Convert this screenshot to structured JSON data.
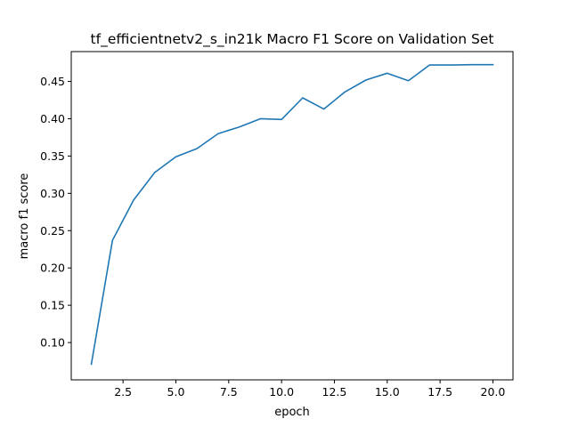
{
  "chart_data": {
    "type": "line",
    "title": "tf_efficientnetv2_s_in21k Macro F1 Score on Validation Set",
    "xlabel": "epoch",
    "ylabel": "macro f1 score",
    "xlim": [
      0.05,
      20.95
    ],
    "ylim": [
      0.05,
      0.49
    ],
    "xticks": [
      2.5,
      5.0,
      7.5,
      10.0,
      12.5,
      15.0,
      17.5,
      20.0
    ],
    "xtick_labels": [
      "2.5",
      "5.0",
      "7.5",
      "10.0",
      "12.5",
      "15.0",
      "17.5",
      "20.0"
    ],
    "yticks": [
      0.1,
      0.15,
      0.2,
      0.25,
      0.3,
      0.35,
      0.4,
      0.45
    ],
    "ytick_labels": [
      "0.10",
      "0.15",
      "0.20",
      "0.25",
      "0.30",
      "0.35",
      "0.40",
      "0.45"
    ],
    "grid": false,
    "series": [
      {
        "color": "#1f77b4",
        "x": [
          1,
          2,
          3,
          4,
          5,
          6,
          7,
          8,
          9,
          10,
          11,
          12,
          13,
          14,
          15,
          16,
          17,
          18,
          19,
          20
        ],
        "y": [
          0.071,
          0.237,
          0.291,
          0.328,
          0.349,
          0.36,
          0.38,
          0.389,
          0.4,
          0.399,
          0.428,
          0.413,
          0.436,
          0.452,
          0.461,
          0.451,
          0.472,
          0.472,
          0.4725,
          0.4725
        ]
      }
    ]
  }
}
